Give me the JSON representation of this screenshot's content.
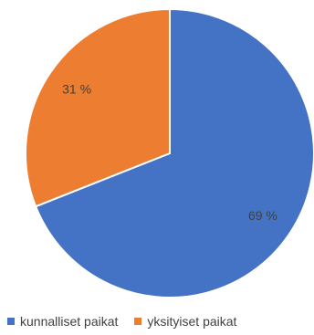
{
  "chart_data": {
    "type": "pie",
    "categories": [
      "kunnalliset paikat",
      "yksityiset paikat"
    ],
    "values": [
      69,
      31
    ],
    "labels": [
      "69 %",
      "31 %"
    ],
    "colors": [
      "#4472C4",
      "#ED7D31"
    ],
    "start_angle": "12 o'clock",
    "direction": "clockwise",
    "legend_position": "bottom"
  }
}
